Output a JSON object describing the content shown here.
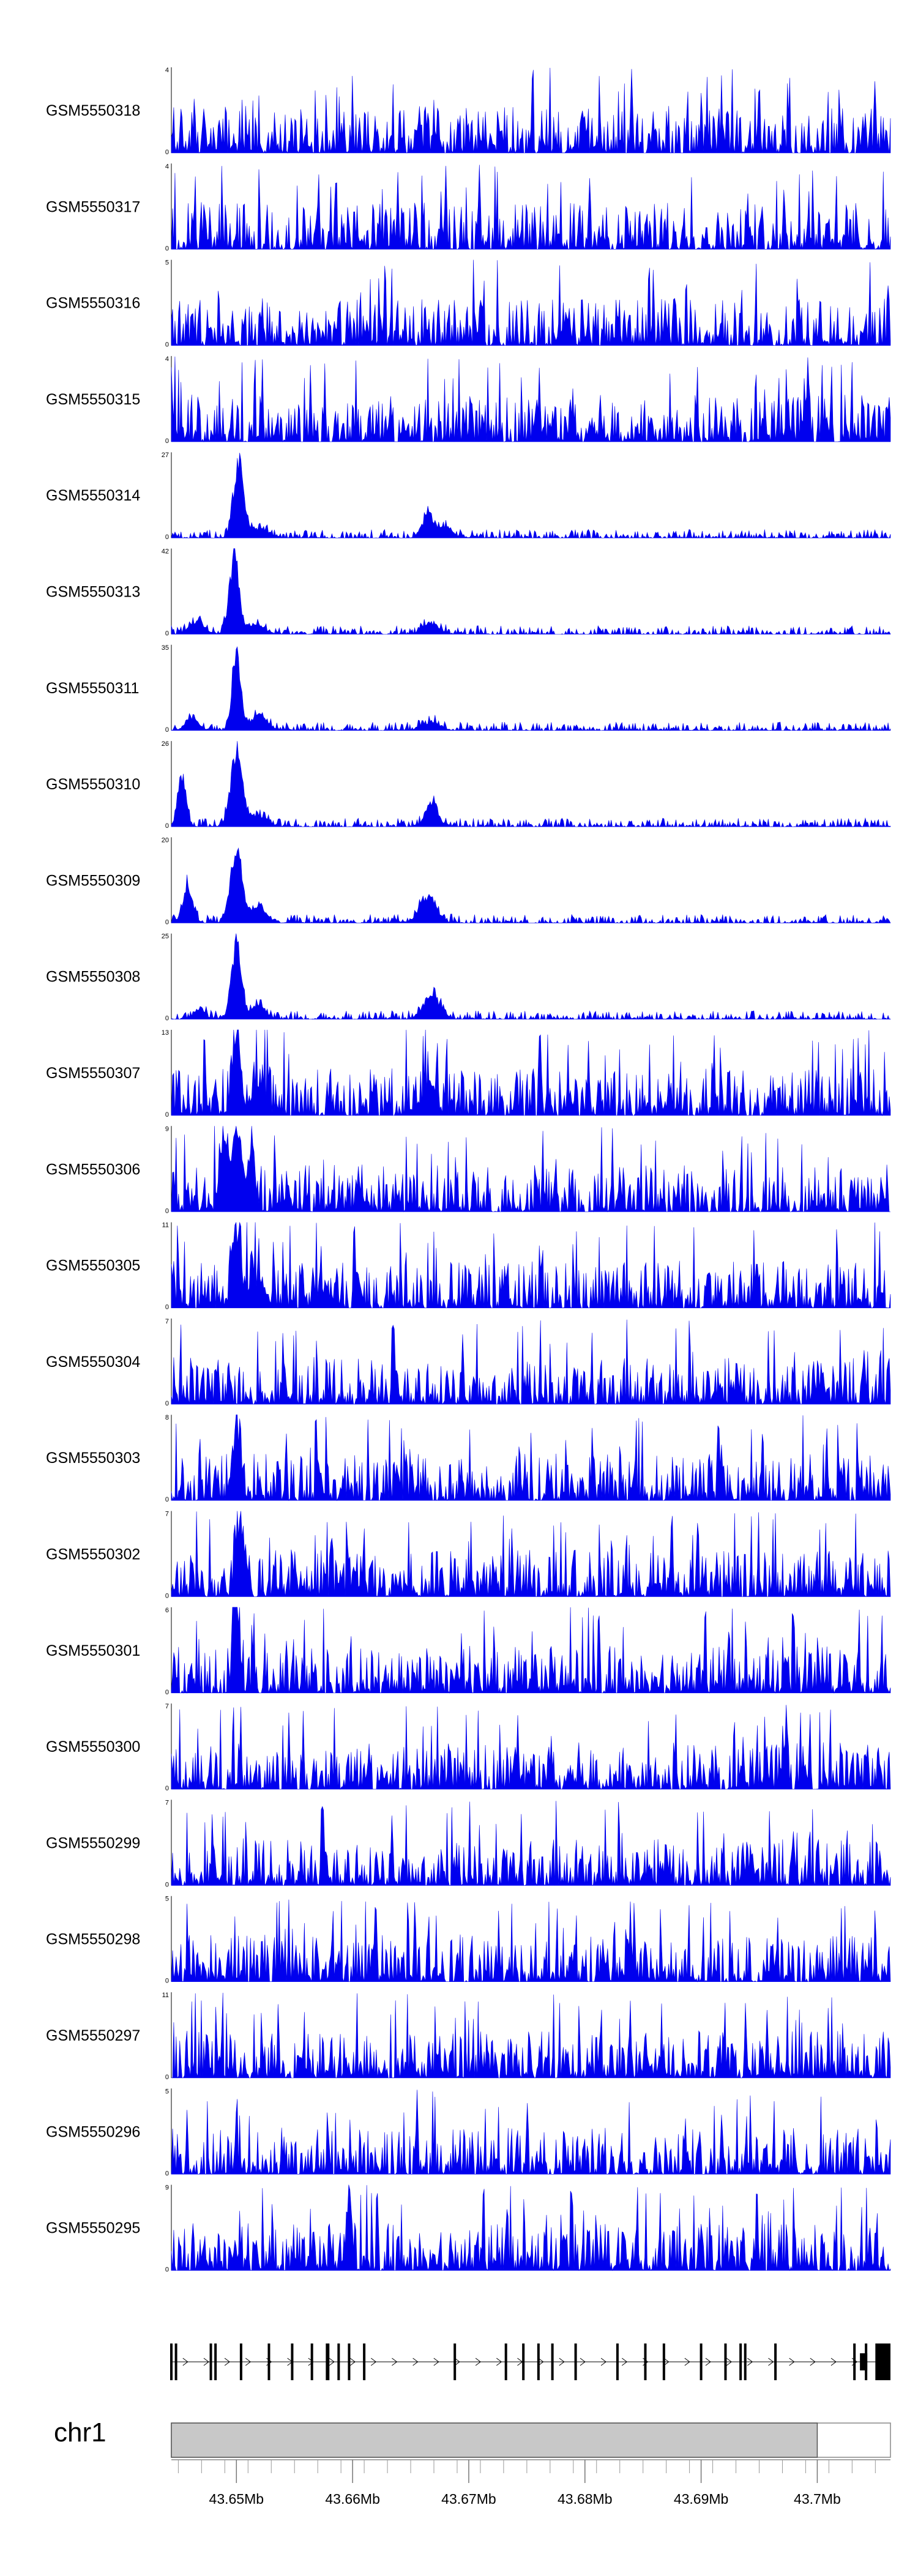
{
  "chart_data": {
    "type": "area",
    "title": "",
    "xlabel": "",
    "ylabel": "",
    "chromosome": "chr1",
    "xlim": [
      43.6444,
      43.7063
    ],
    "x_unit": "Mb",
    "x_ticks": [
      43.65,
      43.66,
      43.67,
      43.68,
      43.69,
      43.7
    ],
    "x_tick_labels": [
      "43.65Mb",
      "43.66Mb",
      "43.67Mb",
      "43.68Mb",
      "43.69Mb",
      "43.7Mb"
    ],
    "ideogram_highlight_end": 43.7,
    "colors": {
      "track": "#0000ee",
      "ideogram": "#c8c8c8",
      "gene": "#000000"
    },
    "series": [
      {
        "name": "GSM5550318",
        "ymax": 4,
        "peaks": []
      },
      {
        "name": "GSM5550317",
        "ymax": 4,
        "peaks": []
      },
      {
        "name": "GSM5550316",
        "ymax": 5,
        "peaks": []
      },
      {
        "name": "GSM5550315",
        "ymax": 4,
        "peaks": []
      },
      {
        "name": "GSM5550314",
        "ymax": 27,
        "peaks": [
          [
            43.6502,
            27,
            0.0006
          ],
          [
            43.6519,
            3.5,
            0.001
          ],
          [
            43.6665,
            8,
            0.0007
          ],
          [
            43.668,
            4,
            0.0008
          ]
        ]
      },
      {
        "name": "GSM5550313",
        "ymax": 42,
        "peaks": [
          [
            43.6498,
            42,
            0.0006
          ],
          [
            43.6466,
            7,
            0.0009
          ],
          [
            43.6517,
            5,
            0.001
          ],
          [
            43.6668,
            6,
            0.0009
          ]
        ]
      },
      {
        "name": "GSM5550311",
        "ymax": 35,
        "peaks": [
          [
            43.65,
            35,
            0.0005
          ],
          [
            43.6519,
            7,
            0.001
          ],
          [
            43.6462,
            5,
            0.0008
          ],
          [
            43.6668,
            4,
            0.001
          ]
        ]
      },
      {
        "name": "GSM5550310",
        "ymax": 26,
        "peaks": [
          [
            43.65,
            26,
            0.0007
          ],
          [
            43.6453,
            18,
            0.0005
          ],
          [
            43.6519,
            4,
            0.001
          ],
          [
            43.6668,
            9,
            0.0007
          ]
        ]
      },
      {
        "name": "GSM5550309",
        "ymax": 20,
        "peaks": [
          [
            43.65,
            20,
            0.0007
          ],
          [
            43.6458,
            10,
            0.0006
          ],
          [
            43.6519,
            4,
            0.0009
          ],
          [
            43.6665,
            7,
            0.001
          ]
        ]
      },
      {
        "name": "GSM5550308",
        "ymax": 25,
        "peaks": [
          [
            43.65,
            25,
            0.0006
          ],
          [
            43.6519,
            5,
            0.0008
          ],
          [
            43.6468,
            3,
            0.0007
          ],
          [
            43.6668,
            8,
            0.001
          ]
        ]
      },
      {
        "name": "GSM5550307",
        "ymax": 13,
        "peaks": [
          [
            43.65,
            13,
            0.0005
          ],
          [
            43.6519,
            5,
            0.0008
          ],
          [
            43.6668,
            6,
            0.0006
          ]
        ]
      },
      {
        "name": "GSM5550306",
        "ymax": 9,
        "peaks": [
          [
            43.649,
            8,
            0.0005
          ],
          [
            43.65,
            9,
            0.0005
          ],
          [
            43.6512,
            6,
            0.0005
          ]
        ]
      },
      {
        "name": "GSM5550305",
        "ymax": 11,
        "peaks": [
          [
            43.65,
            11,
            0.0005
          ],
          [
            43.6519,
            4,
            0.0008
          ]
        ]
      },
      {
        "name": "GSM5550304",
        "ymax": 7,
        "peaks": []
      },
      {
        "name": "GSM5550303",
        "ymax": 8,
        "peaks": [
          [
            43.65,
            8,
            0.0004
          ]
        ]
      },
      {
        "name": "GSM5550302",
        "ymax": 7,
        "peaks": [
          [
            43.6502,
            7,
            0.0004
          ]
        ]
      },
      {
        "name": "GSM5550301",
        "ymax": 6,
        "peaks": [
          [
            43.65,
            6,
            0.0004
          ]
        ]
      },
      {
        "name": "GSM5550300",
        "ymax": 7,
        "peaks": []
      },
      {
        "name": "GSM5550299",
        "ymax": 7,
        "peaks": []
      },
      {
        "name": "GSM5550298",
        "ymax": 5,
        "peaks": []
      },
      {
        "name": "GSM5550297",
        "ymax": 11,
        "peaks": []
      },
      {
        "name": "GSM5550296",
        "ymax": 5,
        "peaks": []
      },
      {
        "name": "GSM5550295",
        "ymax": 9,
        "peaks": [
          [
            43.6597,
            9,
            0.0003
          ]
        ]
      }
    ],
    "gene_model": {
      "strand": "+",
      "exons_mb": [
        43.6444,
        43.6448,
        43.6478,
        43.6482,
        43.6504,
        43.6528,
        43.6548,
        43.6565,
        43.6578,
        43.6579,
        43.6588,
        43.6597,
        43.661,
        43.6688,
        43.6732,
        43.6747,
        43.676,
        43.6772,
        43.6792,
        43.6828,
        43.6852,
        43.6868,
        43.69,
        43.6921,
        43.6934,
        43.6938,
        43.6964,
        43.7032,
        43.7042
      ],
      "exons_end_block": [
        43.705,
        43.7063
      ]
    }
  }
}
